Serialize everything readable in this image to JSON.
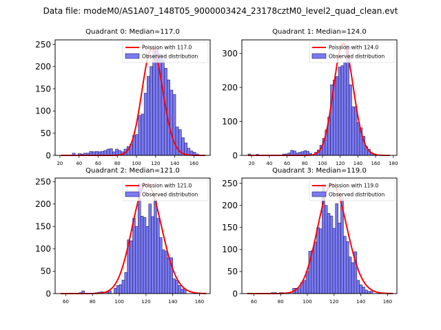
{
  "figure": {
    "suptitle": "Data file: modeM0/AS1A07_148T05_9000003424_23178cztM0_level2_quad_clean.evt"
  },
  "colors": {
    "bar_fill": "#7b7bf0",
    "bar_edge": "#1c1c6a",
    "poisson_line": "#ff0000",
    "axes": "#000000"
  },
  "chart_data": [
    {
      "type": "bar",
      "title": "Quadrant 0: Median=117.0",
      "legend": {
        "position": "top-right",
        "entries": [
          "Poission with 117.0",
          "Observed distribution"
        ]
      },
      "xlim": [
        15,
        177
      ],
      "ylim": [
        0,
        260
      ],
      "xticks": [
        20,
        40,
        60,
        80,
        100,
        120,
        140,
        160
      ],
      "yticks": [
        0,
        50,
        100,
        150,
        200,
        250
      ],
      "bin_width": 3,
      "bins_start": 21,
      "values": [
        0,
        0,
        0,
        0,
        5,
        0,
        4,
        3,
        5,
        5,
        9,
        8,
        9,
        8,
        9,
        11,
        14,
        15,
        8,
        14,
        11,
        8,
        14,
        20,
        25,
        45,
        47,
        90,
        93,
        140,
        178,
        200,
        238,
        240,
        228,
        215,
        196,
        170,
        147,
        137,
        64,
        58,
        40,
        28,
        16,
        10,
        7,
        3,
        1,
        0,
        0
      ],
      "poisson": {
        "mean": 117.0,
        "peak": 242
      }
    },
    {
      "type": "bar",
      "title": "Quadrant 1: Median=124.0",
      "legend": {
        "position": "top-right",
        "entries": [
          "Poission with 124.0",
          "Observed distribution"
        ]
      },
      "xlim": [
        9,
        184
      ],
      "ylim": [
        0,
        340
      ],
      "xticks": [
        20,
        40,
        60,
        80,
        100,
        120,
        140,
        160,
        180
      ],
      "yticks": [
        0,
        100,
        200,
        300
      ],
      "bin_width": 3,
      "bins_start": 16,
      "values": [
        4,
        0,
        0,
        3,
        0,
        0,
        0,
        0,
        0,
        0,
        0,
        0,
        0,
        4,
        4,
        7,
        15,
        13,
        7,
        9,
        11,
        14,
        12,
        6,
        0,
        9,
        16,
        30,
        50,
        75,
        113,
        208,
        222,
        232,
        260,
        264,
        272,
        323,
        208,
        143,
        143,
        97,
        81,
        56,
        26,
        18,
        8,
        4,
        1,
        0,
        0,
        0,
        0
      ],
      "poisson": {
        "mean": 124.0,
        "peak": 329
      }
    },
    {
      "type": "bar",
      "title": "Quadrant 2: Median=121.0",
      "legend": {
        "position": "top-right",
        "entries": [
          "Poission with 121.0",
          "Observed distribution"
        ]
      },
      "xlim": [
        52,
        168
      ],
      "ylim": [
        0,
        258
      ],
      "xticks": [
        60,
        80,
        100,
        120,
        140,
        160
      ],
      "yticks": [
        0,
        50,
        100,
        150,
        200,
        250
      ],
      "bin_width": 2,
      "bins_start": 56,
      "values": [
        0,
        0,
        0,
        0,
        0,
        0,
        0,
        2,
        6,
        0,
        0,
        0,
        0,
        2,
        3,
        4,
        0,
        3,
        6,
        0,
        12,
        18,
        20,
        30,
        47,
        120,
        118,
        168,
        150,
        245,
        173,
        170,
        150,
        200,
        172,
        208,
        168,
        125,
        98,
        95,
        80,
        80,
        33,
        30,
        18,
        10,
        11,
        0,
        0,
        0,
        0,
        0,
        0,
        0
      ],
      "poisson": {
        "mean": 121.0,
        "peak": 245
      }
    },
    {
      "type": "bar",
      "title": "Quadrant 3: Median=119.0",
      "legend": {
        "position": "top-right",
        "entries": [
          "Poission with 119.0",
          "Observed distribution"
        ]
      },
      "xlim": [
        51,
        167
      ],
      "ylim": [
        0,
        262
      ],
      "xticks": [
        60,
        80,
        100,
        120,
        140,
        160
      ],
      "yticks": [
        0,
        50,
        100,
        150,
        200,
        250
      ],
      "bin_width": 2,
      "bins_start": 55,
      "values": [
        0,
        0,
        0,
        0,
        0,
        0,
        0,
        0,
        0,
        2,
        2,
        0,
        2,
        2,
        0,
        0,
        0,
        12,
        12,
        13,
        25,
        30,
        50,
        96,
        98,
        117,
        150,
        147,
        248,
        200,
        182,
        176,
        148,
        204,
        160,
        215,
        130,
        118,
        83,
        70,
        95,
        30,
        20,
        15,
        8,
        5,
        5,
        0,
        0,
        0,
        0,
        0,
        0,
        0
      ],
      "poisson": {
        "mean": 119.0,
        "peak": 248
      }
    }
  ]
}
